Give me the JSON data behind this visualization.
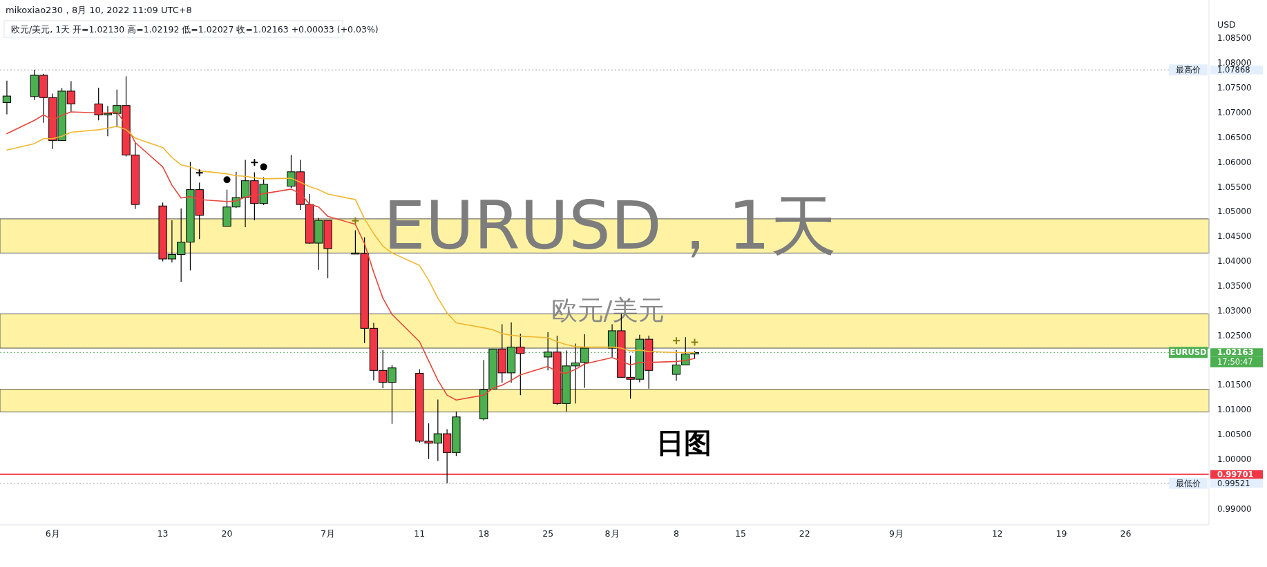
{
  "chart_data": {
    "type": "candlestick",
    "title": "mikoxiao230，8月 10, 2022 11:09 UTC+8",
    "subtitle": "欧元/美元, 1天  开=1.02130  高=1.02192  低=1.02027  收=1.02163  +0.00033 (+0.03%)",
    "ylabel": "USD",
    "x": [
      "2022-05-27",
      "2022-05-30",
      "2022-05-31",
      "2022-06-01",
      "2022-06-02",
      "2022-06-03",
      "2022-06-06",
      "2022-06-07",
      "2022-06-08",
      "2022-06-09",
      "2022-06-10",
      "2022-06-13",
      "2022-06-14",
      "2022-06-15",
      "2022-06-16",
      "2022-06-17",
      "2022-06-20",
      "2022-06-21",
      "2022-06-22",
      "2022-06-23",
      "2022-06-24",
      "2022-06-27",
      "2022-06-28",
      "2022-06-29",
      "2022-06-30",
      "2022-07-01",
      "2022-07-04",
      "2022-07-05",
      "2022-07-06",
      "2022-07-07",
      "2022-07-08",
      "2022-07-11",
      "2022-07-12",
      "2022-07-13",
      "2022-07-14",
      "2022-07-15",
      "2022-07-18",
      "2022-07-19",
      "2022-07-20",
      "2022-07-21",
      "2022-07-22",
      "2022-07-25",
      "2022-07-26",
      "2022-07-27",
      "2022-07-28",
      "2022-07-29",
      "2022-08-01",
      "2022-08-02",
      "2022-08-03",
      "2022-08-04",
      "2022-08-05",
      "2022-08-08",
      "2022-08-09",
      "2022-08-10"
    ],
    "ohlc": [
      [
        1.0721,
        1.0765,
        1.0697,
        1.0734
      ],
      [
        1.0733,
        1.0787,
        1.0726,
        1.0776
      ],
      [
        1.0776,
        1.0779,
        1.068,
        1.0731
      ],
      [
        1.0731,
        1.0739,
        1.0627,
        1.0644
      ],
      [
        1.0644,
        1.075,
        1.0644,
        1.0744
      ],
      [
        1.0744,
        1.0764,
        1.0702,
        1.0718
      ],
      [
        1.0718,
        1.0751,
        1.0685,
        1.0696
      ],
      [
        1.0696,
        1.0714,
        1.0653,
        1.0699
      ],
      [
        1.0699,
        1.0747,
        1.0671,
        1.0715
      ],
      [
        1.0715,
        1.0774,
        1.0612,
        1.0615
      ],
      [
        1.0615,
        1.064,
        1.0506,
        1.0515
      ],
      [
        1.0512,
        1.0519,
        1.04,
        1.0405
      ],
      [
        1.0405,
        1.0483,
        1.0398,
        1.0414
      ],
      [
        1.0414,
        1.0507,
        1.0359,
        1.0439
      ],
      [
        1.0439,
        1.0601,
        1.0382,
        1.0545
      ],
      [
        1.0545,
        1.0559,
        1.0445,
        1.0493
      ],
      [
        1.0471,
        1.0545,
        1.0471,
        1.051
      ],
      [
        1.051,
        1.0581,
        1.0508,
        1.0529
      ],
      [
        1.0529,
        1.0605,
        1.0469,
        1.0563
      ],
      [
        1.0563,
        1.058,
        1.0483,
        1.0517
      ],
      [
        1.0517,
        1.057,
        1.0514,
        1.0556
      ],
      [
        1.0552,
        1.0615,
        1.0548,
        1.0581
      ],
      [
        1.0581,
        1.0605,
        1.0504,
        1.0515
      ],
      [
        1.0515,
        1.0536,
        1.0436,
        1.0437
      ],
      [
        1.0437,
        1.0488,
        1.0383,
        1.0483
      ],
      [
        1.0483,
        1.0483,
        1.0366,
        1.0426
      ],
      [
        1.0416,
        1.0463,
        1.0415,
        1.0417
      ],
      [
        1.0416,
        1.0449,
        1.0235,
        1.0265
      ],
      [
        1.0265,
        1.0276,
        1.016,
        1.018
      ],
      [
        1.018,
        1.0221,
        1.0144,
        1.0156
      ],
      [
        1.0156,
        1.0191,
        1.0072,
        1.0185
      ],
      [
        1.0174,
        1.0182,
        1.0034,
        1.0037
      ],
      [
        1.0037,
        1.0073,
        1.0001,
        1.0033
      ],
      [
        1.0033,
        1.0121,
        0.9997,
        1.0052
      ],
      [
        1.0052,
        1.0061,
        0.9952,
        1.0014
      ],
      [
        1.0014,
        1.0097,
        1.0007,
        1.0086
      ],
      [
        1.0082,
        1.0201,
        1.0079,
        1.0141
      ],
      [
        1.0142,
        1.0224,
        1.0142,
        1.0223
      ],
      [
        1.0223,
        1.0273,
        1.0155,
        1.0175
      ],
      [
        1.0175,
        1.0277,
        1.0155,
        1.0227
      ],
      [
        1.0227,
        1.0254,
        1.013,
        1.0214
      ],
      [
        1.0207,
        1.0257,
        1.018,
        1.0217
      ],
      [
        1.0217,
        1.025,
        1.011,
        1.0113
      ],
      [
        1.0113,
        1.022,
        1.0097,
        1.0189
      ],
      [
        1.0189,
        1.0234,
        1.0113,
        1.0195
      ],
      [
        1.0196,
        1.0253,
        1.0145,
        1.0225
      ],
      [
        1.0225,
        1.0273,
        1.0207,
        1.026
      ],
      [
        1.026,
        1.0294,
        1.0165,
        1.0166
      ],
      [
        1.0166,
        1.021,
        1.0123,
        1.0162
      ],
      [
        1.0162,
        1.0252,
        1.0156,
        1.0243
      ],
      [
        1.0243,
        1.025,
        1.0143,
        1.018
      ],
      [
        1.0172,
        1.0221,
        1.0159,
        1.0191
      ],
      [
        1.0191,
        1.0247,
        1.0191,
        1.0213
      ],
      [
        1.0213,
        1.0219,
        1.0203,
        1.0216
      ]
    ],
    "colors": [
      "#4caf50",
      "#4caf50",
      "#f23645",
      "#f23645",
      "#4caf50",
      "#f23645",
      "#f23645",
      "#4caf50",
      "#4caf50",
      "#f23645",
      "#f23645",
      "#f23645",
      "#4caf50",
      "#4caf50",
      "#4caf50",
      "#f23645",
      "#4caf50",
      "#4caf50",
      "#4caf50",
      "#f23645",
      "#4caf50",
      "#4caf50",
      "#f23645",
      "#f23645",
      "#4caf50",
      "#f23645",
      "#4caf50",
      "#f23645",
      "#f23645",
      "#f23645",
      "#4caf50",
      "#f23645",
      "#f23645",
      "#4caf50",
      "#f23645",
      "#4caf50",
      "#4caf50",
      "#4caf50",
      "#f23645",
      "#4caf50",
      "#f23645",
      "#4caf50",
      "#f23645",
      "#4caf50",
      "#4caf50",
      "#4caf50",
      "#4caf50",
      "#f23645",
      "#f23645",
      "#4caf50",
      "#f23645",
      "#4caf50",
      "#4caf50",
      "#4caf50"
    ],
    "series": [
      {
        "type": "line",
        "color": "#e8463a",
        "values": [
          1.0658,
          1.0685,
          1.0696,
          1.0686,
          1.0695,
          1.0702,
          1.07,
          1.07,
          1.0702,
          1.0676,
          1.064,
          1.0591,
          1.0554,
          1.0528,
          1.0531,
          1.0525,
          1.0521,
          1.0522,
          1.053,
          1.0533,
          1.0537,
          1.0546,
          1.0537,
          1.0516,
          1.051,
          1.0491,
          1.0475,
          1.0436,
          1.0378,
          1.0326,
          1.0293,
          1.0238,
          1.0199,
          1.016,
          1.013,
          1.012,
          1.013,
          1.0144,
          1.015,
          1.016,
          1.0171,
          1.0188,
          1.0177,
          1.0174,
          1.0182,
          1.0193,
          1.0206,
          1.0199,
          1.0191,
          1.0196,
          1.0196,
          1.0198,
          1.02,
          1.0204
        ]
      },
      {
        "type": "line",
        "color": "#f2b630",
        "values": [
          1.0625,
          1.0638,
          1.0648,
          1.0648,
          1.0653,
          1.0661,
          1.0666,
          1.0669,
          1.0673,
          1.0666,
          1.0649,
          1.063,
          1.061,
          1.0595,
          1.0591,
          1.0583,
          1.0577,
          1.0573,
          1.0572,
          1.0569,
          1.0567,
          1.0568,
          1.056,
          1.0551,
          1.0545,
          1.0536,
          1.0525,
          1.0486,
          1.0456,
          1.0431,
          1.0417,
          1.0392,
          1.0362,
          1.0326,
          1.0296,
          1.0276,
          1.0266,
          1.0262,
          1.0254,
          1.0251,
          1.0249,
          1.0246,
          1.0238,
          1.0232,
          1.0228,
          1.0227,
          1.0227,
          1.0225,
          1.0219,
          1.0221,
          1.0218,
          1.0216,
          1.0216,
          1.0216
        ]
      },
      {
        "type": "scatter",
        "marker": "cross",
        "color": "#000000",
        "x": [
          "2022-06-17",
          "2022-06-23"
        ],
        "values": [
          1.0579,
          1.06
        ]
      },
      {
        "type": "scatter",
        "marker": "circle",
        "color": "#000000",
        "x": [
          "2022-06-20",
          "2022-06-24"
        ],
        "values": [
          1.0565,
          1.0591
        ]
      },
      {
        "type": "scatter",
        "marker": "cross",
        "color": "#8a7a12",
        "x": [
          "2022-07-04",
          "2022-08-08",
          "2022-08-10"
        ],
        "values": [
          1.0482,
          1.024,
          1.0237
        ]
      }
    ],
    "xlim": [
      "2022-05-26T06:00",
      "2022-10-05T02:00"
    ],
    "xticks": [
      {
        "value": "2022-06-01",
        "label": "6月"
      },
      {
        "value": "2022-06-13",
        "label": "13"
      },
      {
        "value": "2022-06-20",
        "label": "20"
      },
      {
        "value": "2022-07-01",
        "label": "7月"
      },
      {
        "value": "2022-07-11",
        "label": "11"
      },
      {
        "value": "2022-07-18",
        "label": "18"
      },
      {
        "value": "2022-07-25",
        "label": "25"
      },
      {
        "value": "2022-08-01",
        "label": "8月"
      },
      {
        "value": "2022-08-08",
        "label": "8"
      },
      {
        "value": "2022-08-15",
        "label": "15"
      },
      {
        "value": "2022-08-22",
        "label": "22"
      },
      {
        "value": "2022-09-01",
        "label": "9月"
      },
      {
        "value": "2022-09-12",
        "label": "12"
      },
      {
        "value": "2022-09-19",
        "label": "19"
      },
      {
        "value": "2022-09-26",
        "label": "26"
      }
    ],
    "ylim": [
      0.9868,
      1.0928
    ],
    "yticks": [
      {
        "value": 1.085,
        "label": "1.08500"
      },
      {
        "value": 1.08,
        "label": "1.08000"
      },
      {
        "value": 1.075,
        "label": "1.07500"
      },
      {
        "value": 1.07,
        "label": "1.07000"
      },
      {
        "value": 1.065,
        "label": "1.06500"
      },
      {
        "value": 1.06,
        "label": "1.06000"
      },
      {
        "value": 1.055,
        "label": "1.05500"
      },
      {
        "value": 1.05,
        "label": "1.05000"
      },
      {
        "value": 1.045,
        "label": "1.04500"
      },
      {
        "value": 1.04,
        "label": "1.04000"
      },
      {
        "value": 1.035,
        "label": "1.03500"
      },
      {
        "value": 1.03,
        "label": "1.03000"
      },
      {
        "value": 1.025,
        "label": "1.02500"
      },
      {
        "value": 1.015,
        "label": "1.01500"
      },
      {
        "value": 1.01,
        "label": "1.01000"
      },
      {
        "value": 1.005,
        "label": "1.00500"
      },
      {
        "value": 1.0,
        "label": "1.00000"
      },
      {
        "value": 0.99,
        "label": "0.99000"
      }
    ],
    "ref_lines": [
      {
        "axis": "y",
        "value": 1.07868,
        "label": "最高价",
        "color": "#9598a1",
        "line_style": "dotted"
      },
      {
        "axis": "y",
        "value": 1.02163,
        "label": "EURUSD",
        "color": "#4caf50",
        "line_style": "dotted"
      },
      {
        "axis": "y",
        "value": 0.99701,
        "label": null,
        "color": "#f23645",
        "line_style": "solid"
      },
      {
        "axis": "y",
        "value": 0.99521,
        "label": "最低价",
        "color": "#9598a1",
        "line_style": "dotted"
      }
    ],
    "bands": [
      {
        "axis": "y",
        "from": 1.0417,
        "to": 1.0486,
        "color": "#fff3a3"
      },
      {
        "axis": "y",
        "from": 1.0225,
        "to": 1.0294,
        "color": "#fff3a3"
      },
      {
        "axis": "y",
        "from": 1.0096,
        "to": 1.0142,
        "color": "#fff3a3"
      }
    ],
    "annotations": [
      "EURUSD，1天",
      "欧元/美元",
      "日图",
      "17:50:47",
      "1.07868",
      "1.02163",
      "0.99701",
      "0.99521"
    ]
  }
}
